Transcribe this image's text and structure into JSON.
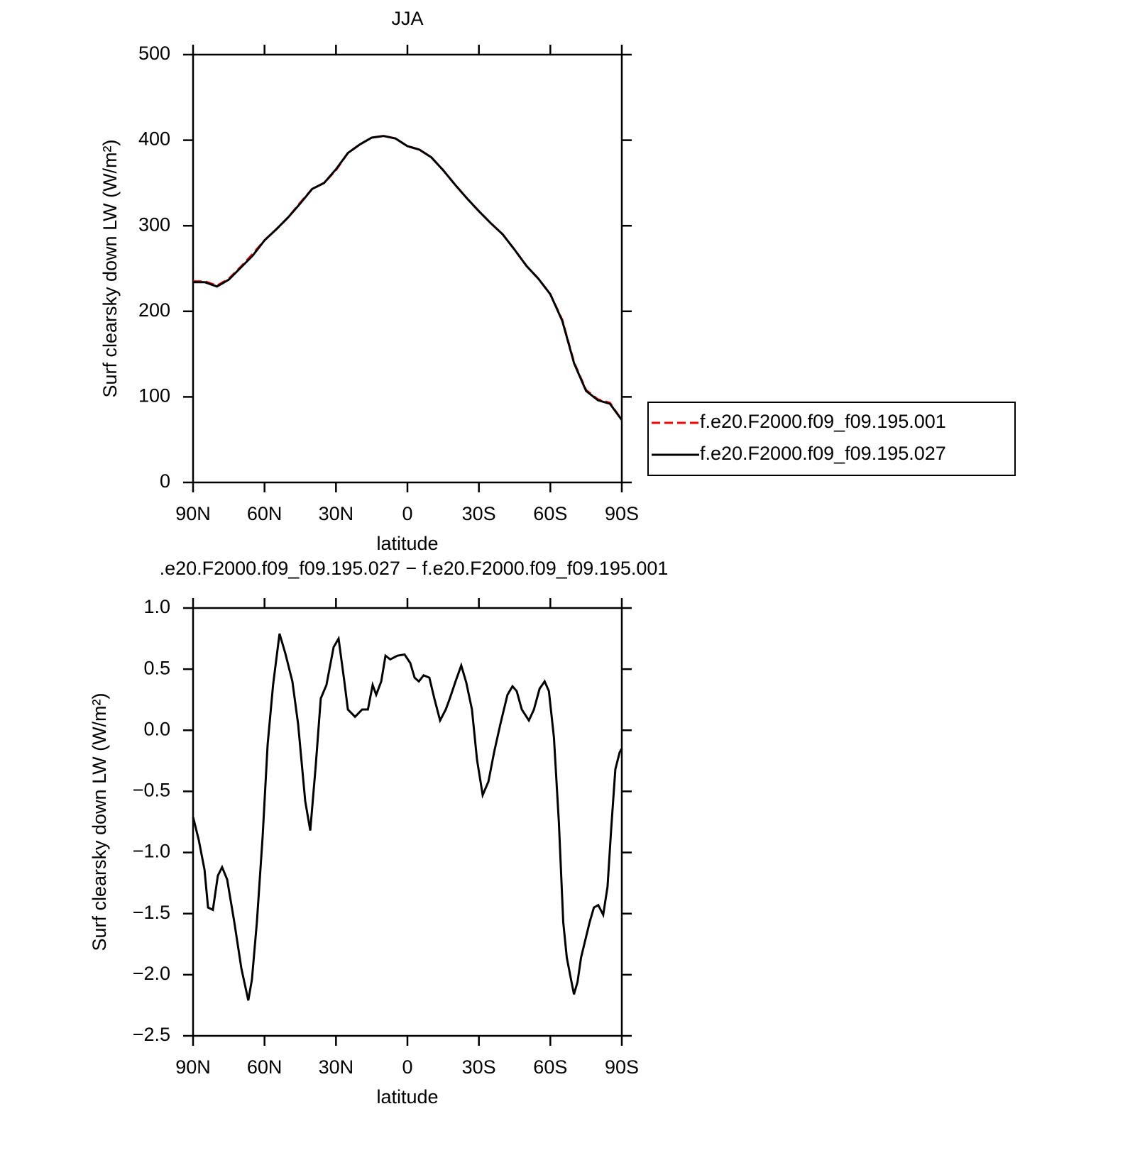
{
  "chart_data": [
    {
      "type": "line",
      "title": "JJA",
      "xlabel": "latitude",
      "ylabel": "Surf clearsky down LW (W/m²)",
      "x": [
        90,
        85,
        80,
        75,
        70,
        65,
        60,
        55,
        50,
        45,
        40,
        35,
        30,
        25,
        20,
        15,
        10,
        5,
        0,
        -5,
        -10,
        -15,
        -20,
        -25,
        -30,
        -35,
        -40,
        -45,
        -50,
        -55,
        -60,
        -65,
        -70,
        -75,
        -80,
        -85,
        -90
      ],
      "series": [
        {
          "name": "f.e20.F2000.f09_f09.195.001",
          "color": "#ff0000",
          "dash": true,
          "values": [
            235,
            235,
            230,
            238,
            252,
            267,
            283,
            296,
            310,
            327,
            343,
            350,
            365,
            385,
            395,
            403,
            405,
            402,
            393,
            389,
            380,
            365,
            348,
            332,
            317,
            303,
            290,
            272,
            253,
            238,
            220,
            190,
            140,
            108,
            97,
            93,
            73
          ]
        },
        {
          "name": "f.e20.F2000.f09_f09.195.027",
          "color": "#000000",
          "dash": false,
          "values": [
            234,
            234,
            229,
            237,
            251,
            265,
            283,
            296,
            310,
            326,
            343,
            350,
            366,
            385,
            395,
            403,
            405,
            402,
            393,
            389,
            380,
            365,
            348,
            332,
            317,
            303,
            290,
            272,
            253,
            238,
            220,
            189,
            139,
            107,
            96,
            92,
            73
          ]
        }
      ],
      "xlim": [
        90,
        -90
      ],
      "xticks": [
        {
          "value": 90,
          "label": "90N"
        },
        {
          "value": 60,
          "label": "60N"
        },
        {
          "value": 30,
          "label": "30N"
        },
        0,
        {
          "value": -30,
          "label": "30S"
        },
        {
          "value": -60,
          "label": "60S"
        },
        {
          "value": -90,
          "label": "90S"
        }
      ],
      "ylim": [
        0,
        500
      ],
      "yticks": [
        0,
        100,
        200,
        300,
        400,
        500
      ],
      "legend": "right"
    },
    {
      "type": "line",
      "title": ".e20.F2000.f09_f09.195.027 − f.e20.F2000.f09_f09.195.001",
      "xlabel": "latitude",
      "ylabel": "Surf clearsky down LW (W/m²)",
      "x": [
        90,
        87.6,
        85.2,
        83.7,
        81.7,
        79.6,
        77.8,
        75.7,
        72.7,
        69.7,
        66.8,
        65.3,
        63.2,
        60.8,
        58.7,
        56.4,
        53.7,
        51.3,
        48.3,
        45.9,
        42.9,
        40.8,
        38.5,
        36.4,
        34,
        31,
        28.9,
        26.5,
        25,
        22,
        19,
        16.6,
        14.6,
        13.1,
        11,
        9.2,
        7.2,
        4.2,
        1.2,
        -1.2,
        -3,
        -4.8,
        -6.8,
        -9.2,
        -11.3,
        -13.7,
        -16.1,
        -17.8,
        -20.2,
        -22.6,
        -24.7,
        -27.1,
        -29.2,
        -31.6,
        -34,
        -36.4,
        -39,
        -42,
        -44.1,
        -45.9,
        -48,
        -51,
        -53.1,
        -55.5,
        -57.6,
        -59.4,
        -61.5,
        -63.6,
        -65.4,
        -66.9,
        -68.4,
        -69.9,
        -71.4,
        -72.9,
        -75,
        -76.5,
        -78.3,
        -80.1,
        -82.2,
        -84,
        -85.5,
        -87.3,
        -89.1,
        -90
      ],
      "series": [
        {
          "name": null,
          "color": "#000000",
          "dash": false,
          "values": [
            -0.71,
            -0.9,
            -1.14,
            -1.45,
            -1.47,
            -1.19,
            -1.12,
            -1.22,
            -1.57,
            -1.95,
            -2.21,
            -2.04,
            -1.57,
            -0.87,
            -0.12,
            0.37,
            0.79,
            0.63,
            0.4,
            0.05,
            -0.58,
            -0.82,
            -0.29,
            0.26,
            0.37,
            0.68,
            0.75,
            0.4,
            0.17,
            0.11,
            0.17,
            0.17,
            0.37,
            0.29,
            0.4,
            0.61,
            0.58,
            0.61,
            0.62,
            0.55,
            0.43,
            0.4,
            0.45,
            0.43,
            0.26,
            0.08,
            0.17,
            0.26,
            0.4,
            0.53,
            0.39,
            0.17,
            -0.24,
            -0.53,
            -0.42,
            -0.18,
            0.05,
            0.29,
            0.36,
            0.32,
            0.17,
            0.08,
            0.17,
            0.34,
            0.4,
            0.32,
            -0.06,
            -0.76,
            -1.57,
            -1.86,
            -2.01,
            -2.16,
            -2.06,
            -1.86,
            -1.69,
            -1.57,
            -1.45,
            -1.43,
            -1.51,
            -1.28,
            -0.82,
            -0.32,
            -0.18,
            -0.15
          ]
        }
      ],
      "xlim": [
        90,
        -90
      ],
      "xticks": [
        {
          "value": 90,
          "label": "90N"
        },
        {
          "value": 60,
          "label": "60N"
        },
        {
          "value": 30,
          "label": "30N"
        },
        0,
        {
          "value": -30,
          "label": "30S"
        },
        {
          "value": -60,
          "label": "60S"
        },
        {
          "value": -90,
          "label": "90S"
        }
      ],
      "ylim": [
        -2.5,
        1.0
      ],
      "yticks": [
        {
          "value": -2.5,
          "label": "−2.5"
        },
        {
          "value": -2.0,
          "label": "−2.0"
        },
        {
          "value": -1.5,
          "label": "−1.5"
        },
        {
          "value": -1.0,
          "label": "−1.0"
        },
        {
          "value": -0.5,
          "label": "−0.5"
        },
        {
          "value": 0.0,
          "label": "0.0"
        },
        {
          "value": 0.5,
          "label": "0.5"
        },
        {
          "value": 1.0,
          "label": "1.0"
        }
      ]
    }
  ]
}
